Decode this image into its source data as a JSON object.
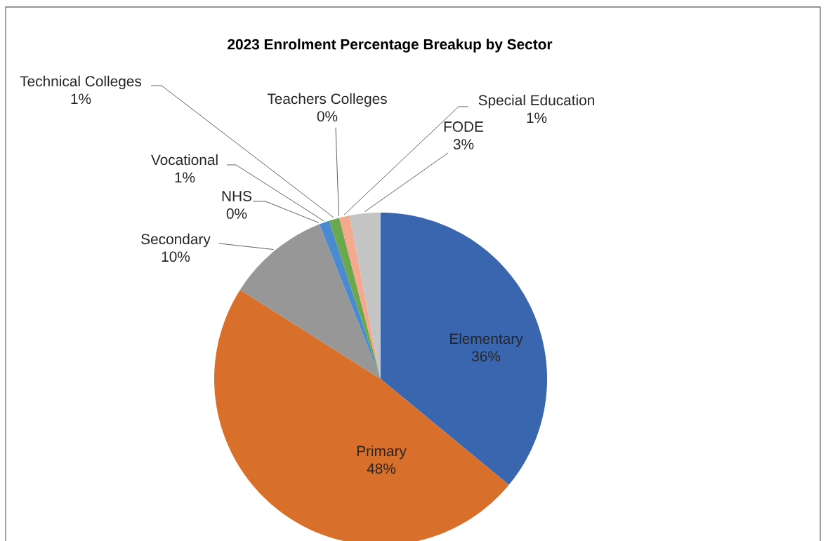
{
  "chart_data": {
    "type": "pie",
    "title": "2023 Enrolment  Percentage Breakup by Sector",
    "categories": [
      "Elementary",
      "Primary",
      "Secondary",
      "NHS",
      "Vocational",
      "Technical Colleges",
      "Teachers Colleges",
      "Special Education",
      "FODE"
    ],
    "values": [
      36,
      48,
      10,
      0,
      1,
      1,
      0,
      1,
      3
    ],
    "value_labels": [
      "36%",
      "48%",
      "10%",
      "0%",
      "1%",
      "1%",
      "0%",
      "1%",
      "3%"
    ],
    "colors": [
      "#3a66b0",
      "#d86f2a",
      "#979797",
      "#ffc000",
      "#4a8bd0",
      "#6aa84f",
      "#264478",
      "#f4a98e",
      "#c4c4c4"
    ]
  }
}
